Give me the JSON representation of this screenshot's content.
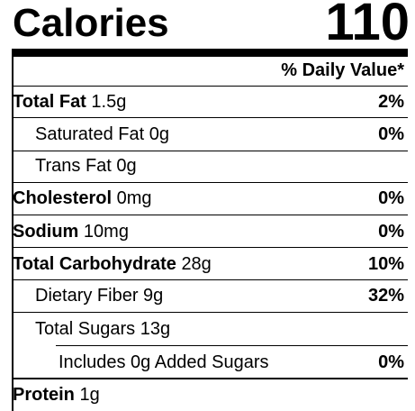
{
  "calories": {
    "label": "Calories",
    "value": "110"
  },
  "daily_value_header": "% Daily Value*",
  "rows": [
    {
      "label": "Total Fat",
      "amount": "1.5g",
      "dv": "2%"
    },
    {
      "label": "Saturated Fat",
      "amount": "0g",
      "dv": "0%"
    },
    {
      "label": "Trans Fat",
      "amount": "0g"
    },
    {
      "label": "Cholesterol",
      "amount": "0mg",
      "dv": "0%"
    },
    {
      "label": "Sodium",
      "amount": "10mg",
      "dv": "0%"
    },
    {
      "label": "Total Carbohydrate",
      "amount": "28g",
      "dv": "10%"
    },
    {
      "label": "Dietary Fiber",
      "amount": "9g",
      "dv": "32%"
    },
    {
      "label": "Total Sugars",
      "amount": "13g"
    },
    {
      "label": "Includes 0g Added Sugars",
      "dv": "0%"
    },
    {
      "label": "Protein",
      "amount": "1g"
    }
  ]
}
